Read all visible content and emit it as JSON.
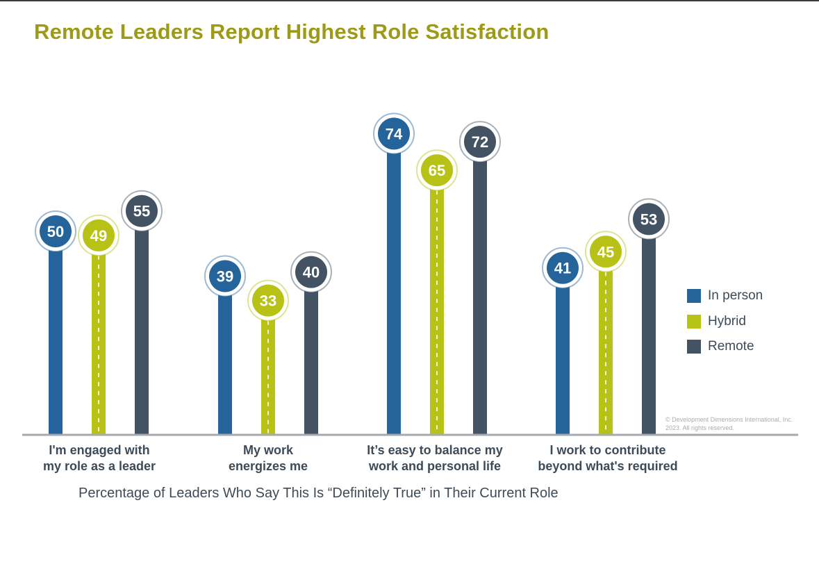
{
  "colors": {
    "title": "#9c9a16",
    "in_person": "#25649a",
    "hybrid": "#b8c115",
    "remote": "#435363",
    "axis": "#a6aaae",
    "text": "#3e4b57"
  },
  "copyright": "© Development Dimensions International, Inc. 2023. All rights reserved.",
  "chart_data": {
    "type": "bar",
    "title": "Remote Leaders Report Highest Role Satisfaction",
    "xlabel": "Percentage of Leaders Who Say This Is “Definitely True” in Their Current Role",
    "ylabel": "",
    "ylim": [
      0,
      100
    ],
    "grid": false,
    "legend_position": "right",
    "categories": [
      [
        "I'm engaged with",
        "my role as a leader"
      ],
      [
        "My work",
        "energizes me"
      ],
      [
        "It’s easy to balance my",
        "work and personal life"
      ],
      [
        "I work to contribute",
        "beyond what's required"
      ]
    ],
    "series": [
      {
        "name": "In person",
        "color": "#25649a",
        "values": [
          50,
          39,
          74,
          41
        ]
      },
      {
        "name": "Hybrid",
        "color": "#b8c115",
        "values": [
          49,
          33,
          65,
          45
        ]
      },
      {
        "name": "Remote",
        "color": "#435363",
        "values": [
          55,
          40,
          72,
          53
        ]
      }
    ]
  }
}
